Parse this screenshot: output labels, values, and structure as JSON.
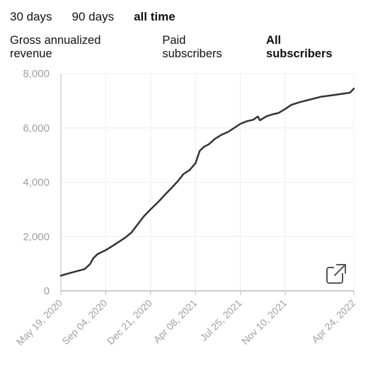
{
  "range_tabs": [
    {
      "label": "30 days",
      "active": false
    },
    {
      "label": "90 days",
      "active": false
    },
    {
      "label": "all time",
      "active": true
    }
  ],
  "metric_tabs": [
    {
      "label": "Gross annualized revenue",
      "active": false
    },
    {
      "label": "Paid subscribers",
      "active": false
    },
    {
      "label": "All subscribers",
      "active": true
    }
  ],
  "chart_data": {
    "type": "line",
    "title": "",
    "xlabel": "",
    "ylabel": "",
    "ylim": [
      0,
      8000
    ],
    "yticks": [
      0,
      2000,
      4000,
      6000,
      8000
    ],
    "ytick_labels": [
      "0",
      "2,000",
      "4,000",
      "6,000",
      "8,000"
    ],
    "xticks": [
      "2020-05-19",
      "2020-09-04",
      "2020-12-21",
      "2021-04-08",
      "2021-07-25",
      "2021-11-10",
      "2022-04-24"
    ],
    "xtick_labels": [
      "May 19, 2020",
      "Sep 04, 2020",
      "Dec 21, 2020",
      "Apr 08, 2021",
      "Jul 25, 2021",
      "Nov 10, 2021",
      "Apr 24, 2022"
    ],
    "xlim": [
      "2020-05-19",
      "2022-04-24"
    ],
    "grid": true,
    "line_color": "#333333",
    "series": [
      {
        "x": [
          "2020-05-19",
          "2020-06-15",
          "2020-07-15",
          "2020-07-28",
          "2020-08-05",
          "2020-08-15",
          "2020-09-04",
          "2020-09-20",
          "2020-10-05",
          "2020-10-20",
          "2020-11-05",
          "2020-11-20",
          "2020-12-05",
          "2020-12-21",
          "2021-01-10",
          "2021-01-25",
          "2021-02-10",
          "2021-02-25",
          "2021-03-10",
          "2021-03-25",
          "2021-04-08",
          "2021-04-18",
          "2021-04-28",
          "2021-05-10",
          "2021-05-25",
          "2021-06-10",
          "2021-06-25",
          "2021-07-10",
          "2021-07-25",
          "2021-08-10",
          "2021-08-25",
          "2021-09-05",
          "2021-09-10",
          "2021-09-25",
          "2021-10-10",
          "2021-10-25",
          "2021-11-10",
          "2021-11-25",
          "2021-12-15",
          "2022-01-10",
          "2022-02-05",
          "2022-03-01",
          "2022-03-25",
          "2022-04-15",
          "2022-04-24"
        ],
        "y": [
          560,
          680,
          800,
          980,
          1200,
          1350,
          1500,
          1650,
          1800,
          1950,
          2150,
          2450,
          2750,
          3000,
          3300,
          3550,
          3800,
          4050,
          4300,
          4450,
          4700,
          5150,
          5300,
          5400,
          5600,
          5750,
          5850,
          6000,
          6150,
          6250,
          6300,
          6420,
          6280,
          6420,
          6500,
          6550,
          6700,
          6850,
          6950,
          7050,
          7150,
          7200,
          7250,
          7300,
          7450
        ]
      }
    ]
  }
}
